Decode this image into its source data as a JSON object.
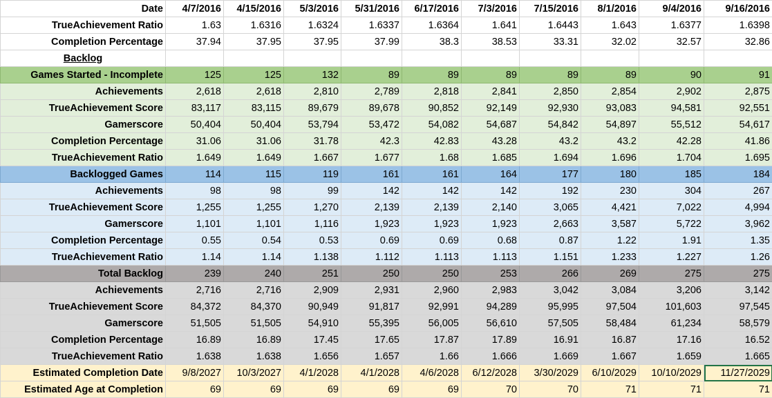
{
  "header": {
    "label": "Date",
    "dates": [
      "4/7/2016",
      "4/15/2016",
      "5/3/2016",
      "5/31/2016",
      "6/17/2016",
      "7/3/2016",
      "7/15/2016",
      "8/1/2016",
      "9/4/2016",
      "9/16/2016"
    ]
  },
  "top_rows": [
    {
      "label": "TrueAchievement Ratio",
      "values": [
        "1.63",
        "1.6316",
        "1.6324",
        "1.6337",
        "1.6364",
        "1.641",
        "1.6443",
        "1.643",
        "1.6377",
        "1.6398"
      ]
    },
    {
      "label": "Completion Percentage",
      "values": [
        "37.94",
        "37.95",
        "37.95",
        "37.99",
        "38.3",
        "38.53",
        "33.31",
        "32.02",
        "32.57",
        "32.86"
      ]
    }
  ],
  "backlog_title": "Backlog",
  "sections": {
    "started": {
      "title": {
        "label": "Games Started - Incomplete",
        "values": [
          "125",
          "125",
          "132",
          "89",
          "89",
          "89",
          "89",
          "89",
          "90",
          "91"
        ]
      },
      "rows": [
        {
          "label": "Achievements",
          "values": [
            "2,618",
            "2,618",
            "2,810",
            "2,789",
            "2,818",
            "2,841",
            "2,850",
            "2,854",
            "2,902",
            "2,875"
          ]
        },
        {
          "label": "TrueAchievement Score",
          "values": [
            "83,117",
            "83,115",
            "89,679",
            "89,678",
            "90,852",
            "92,149",
            "92,930",
            "93,083",
            "94,581",
            "92,551"
          ]
        },
        {
          "label": "Gamerscore",
          "values": [
            "50,404",
            "50,404",
            "53,794",
            "53,472",
            "54,082",
            "54,687",
            "54,842",
            "54,897",
            "55,512",
            "54,617"
          ]
        },
        {
          "label": "Completion Percentage",
          "values": [
            "31.06",
            "31.06",
            "31.78",
            "42.3",
            "42.83",
            "43.28",
            "43.2",
            "43.2",
            "42.28",
            "41.86"
          ]
        },
        {
          "label": "TrueAchievement Ratio",
          "values": [
            "1.649",
            "1.649",
            "1.667",
            "1.677",
            "1.68",
            "1.685",
            "1.694",
            "1.696",
            "1.704",
            "1.695"
          ]
        }
      ]
    },
    "backlogged": {
      "title": {
        "label": "Backlogged Games",
        "values": [
          "114",
          "115",
          "119",
          "161",
          "161",
          "164",
          "177",
          "180",
          "185",
          "184"
        ]
      },
      "rows": [
        {
          "label": "Achievements",
          "values": [
            "98",
            "98",
            "99",
            "142",
            "142",
            "142",
            "192",
            "230",
            "304",
            "267"
          ]
        },
        {
          "label": "TrueAchievement Score",
          "values": [
            "1,255",
            "1,255",
            "1,270",
            "2,139",
            "2,139",
            "2,140",
            "3,065",
            "4,421",
            "7,022",
            "4,994"
          ]
        },
        {
          "label": "Gamerscore",
          "values": [
            "1,101",
            "1,101",
            "1,116",
            "1,923",
            "1,923",
            "1,923",
            "2,663",
            "3,587",
            "5,722",
            "3,962"
          ]
        },
        {
          "label": "Completion Percentage",
          "values": [
            "0.55",
            "0.54",
            "0.53",
            "0.69",
            "0.69",
            "0.68",
            "0.87",
            "1.22",
            "1.91",
            "1.35"
          ]
        },
        {
          "label": "TrueAchievement Ratio",
          "values": [
            "1.14",
            "1.14",
            "1.138",
            "1.112",
            "1.113",
            "1.113",
            "1.151",
            "1.233",
            "1.227",
            "1.26"
          ]
        }
      ]
    },
    "total": {
      "title": {
        "label": "Total Backlog",
        "values": [
          "239",
          "240",
          "251",
          "250",
          "250",
          "253",
          "266",
          "269",
          "275",
          "275"
        ]
      },
      "rows": [
        {
          "label": "Achievements",
          "values": [
            "2,716",
            "2,716",
            "2,909",
            "2,931",
            "2,960",
            "2,983",
            "3,042",
            "3,084",
            "3,206",
            "3,142"
          ]
        },
        {
          "label": "TrueAchievement Score",
          "values": [
            "84,372",
            "84,370",
            "90,949",
            "91,817",
            "92,991",
            "94,289",
            "95,995",
            "97,504",
            "101,603",
            "97,545"
          ]
        },
        {
          "label": "Gamerscore",
          "values": [
            "51,505",
            "51,505",
            "54,910",
            "55,395",
            "56,005",
            "56,610",
            "57,505",
            "58,484",
            "61,234",
            "58,579"
          ]
        },
        {
          "label": "Completion Percentage",
          "values": [
            "16.89",
            "16.89",
            "17.45",
            "17.65",
            "17.87",
            "17.89",
            "16.91",
            "16.87",
            "17.16",
            "16.52"
          ]
        },
        {
          "label": "TrueAchievement Ratio",
          "values": [
            "1.638",
            "1.638",
            "1.656",
            "1.657",
            "1.66",
            "1.666",
            "1.669",
            "1.667",
            "1.659",
            "1.665"
          ]
        }
      ]
    }
  },
  "estimate_rows": [
    {
      "label": "Estimated Completion Date",
      "values": [
        "9/8/2027",
        "10/3/2027",
        "4/1/2028",
        "4/1/2028",
        "4/6/2028",
        "6/12/2028",
        "3/30/2029",
        "6/10/2029",
        "10/10/2029",
        "11/27/2029"
      ]
    },
    {
      "label": "Estimated Age at Completion",
      "values": [
        "69",
        "69",
        "69",
        "69",
        "69",
        "70",
        "70",
        "71",
        "71",
        "71"
      ]
    }
  ],
  "colors": {
    "started_header": "#a9d08e",
    "started_rows": "#e2efda",
    "backlogged_header": "#9bc2e6",
    "backlogged_rows": "#ddebf7",
    "total_header": "#aeaaaa",
    "total_rows": "#d9d9d9",
    "estimate_rows": "#fff2cc"
  }
}
